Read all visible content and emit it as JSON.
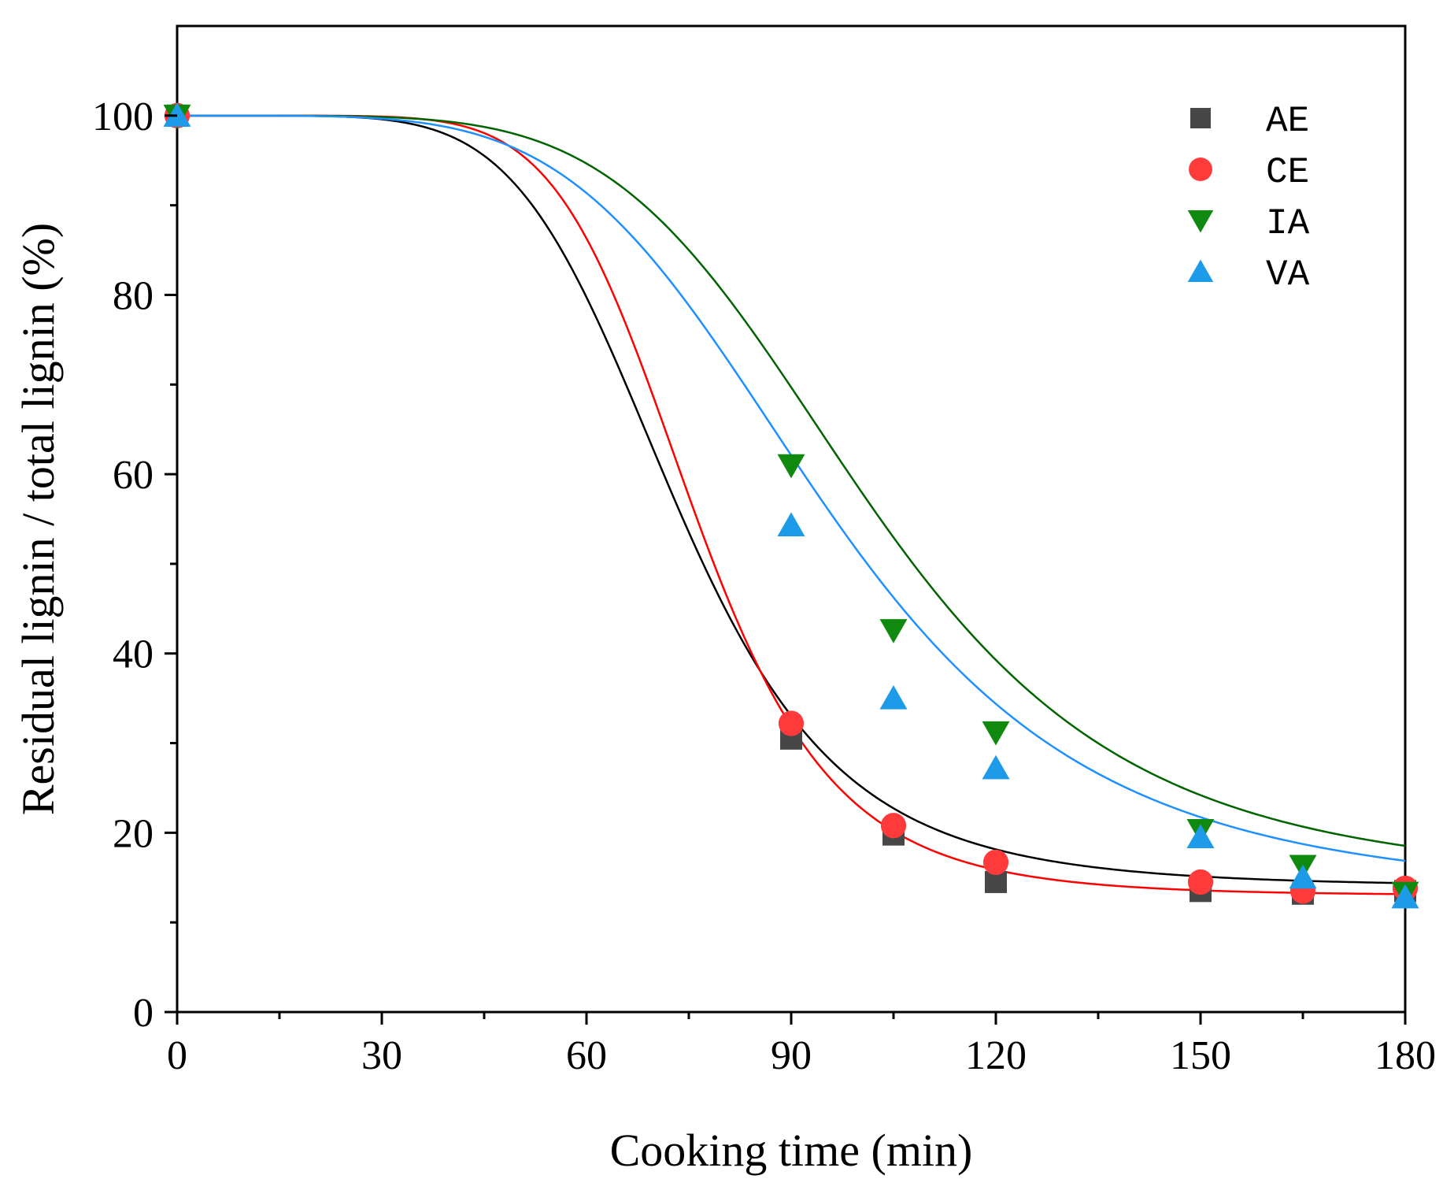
{
  "chart_data": {
    "type": "scatter",
    "title": "",
    "xlabel": "Cooking time (min)",
    "ylabel": "Residual lignin / total lignin (%)",
    "xlim": [
      0,
      180
    ],
    "ylim": [
      0,
      110
    ],
    "x_ticks": [
      0,
      30,
      60,
      90,
      120,
      150,
      180
    ],
    "y_ticks": [
      0,
      20,
      40,
      60,
      80,
      100
    ],
    "grid": false,
    "legend_position": "top-right",
    "x": [
      0,
      90,
      105,
      120,
      150,
      165,
      180
    ],
    "series": [
      {
        "name": "AE",
        "marker": "square",
        "color": "#474747",
        "fit_color": "#000000",
        "values": [
          100,
          30.5,
          19.8,
          14.5,
          13.5,
          13.2,
          13.5
        ],
        "fit": {
          "bottom": 14.0,
          "top": 100.0,
          "x0": 73.0,
          "p": 6.0
        }
      },
      {
        "name": "CE",
        "marker": "circle",
        "color": "#ff3a3a",
        "fit_color": "#ff0000",
        "values": [
          100,
          32.2,
          20.8,
          16.7,
          14.5,
          13.5,
          13.8
        ],
        "fit": {
          "bottom": 13.0,
          "top": 100.0,
          "x0": 75.5,
          "p": 7.3
        }
      },
      {
        "name": "IA",
        "marker": "triangle-down",
        "color": "#0f8a0f",
        "fit_color": "#006400",
        "values": [
          100,
          61,
          42.6,
          31.2,
          20.3,
          16.3,
          13.3
        ],
        "fit": {
          "bottom": 14.5,
          "top": 100.0,
          "x0": 101.0,
          "p": 5.2
        }
      },
      {
        "name": "VA",
        "marker": "triangle-up",
        "color": "#1e9be8",
        "fit_color": "#1e90ff",
        "values": [
          100,
          54.3,
          35,
          27.2,
          19.5,
          15,
          12.8
        ],
        "fit": {
          "bottom": 13.0,
          "top": 100.0,
          "x0": 95.0,
          "p": 4.8
        }
      }
    ]
  }
}
